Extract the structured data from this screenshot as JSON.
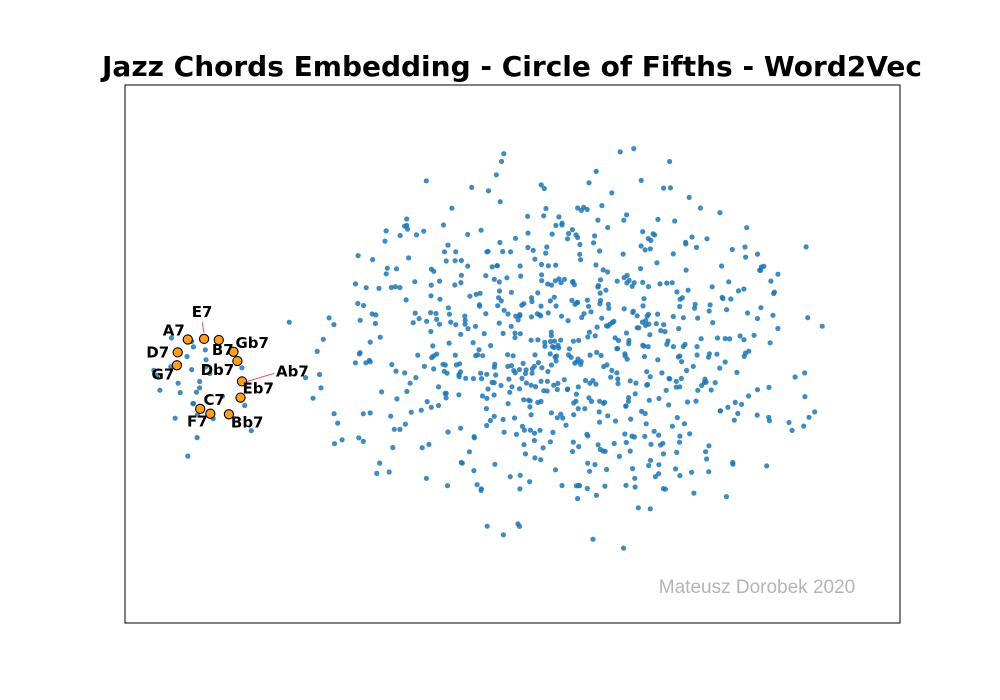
{
  "chart_data": {
    "type": "scatter",
    "title": "Jazz Chords Embedding - Circle of Fifths - Word2Vec",
    "xlabel": "",
    "ylabel": "",
    "xlim": [
      0,
      100
    ],
    "ylim": [
      0,
      100
    ],
    "ticks_visible": false,
    "grid": false,
    "legend": "none",
    "background_points": {
      "color": "#1f77b4",
      "count": 760,
      "cluster_centroid": [
        57,
        52
      ]
    },
    "highlighted": [
      {
        "label": "E7",
        "x": 10.2,
        "y": 52.8
      },
      {
        "label": "A7",
        "x": 8.1,
        "y": 52.7
      },
      {
        "label": "B7",
        "x": 12.1,
        "y": 52.6
      },
      {
        "label": "D7",
        "x": 6.8,
        "y": 50.3
      },
      {
        "label": "Gb7",
        "x": 14.0,
        "y": 50.4
      },
      {
        "label": "Db7",
        "x": 14.5,
        "y": 48.7
      },
      {
        "label": "G7",
        "x": 6.7,
        "y": 47.9
      },
      {
        "label": "Ab7",
        "x": 15.1,
        "y": 44.9
      },
      {
        "label": "Eb7",
        "x": 14.9,
        "y": 41.9
      },
      {
        "label": "C7",
        "x": 9.7,
        "y": 39.8
      },
      {
        "label": "F7",
        "x": 11.0,
        "y": 38.9
      },
      {
        "label": "Bb7",
        "x": 13.4,
        "y": 38.8
      }
    ],
    "highlight_color": "#ff9f1c",
    "arrow_color": "#e6443c",
    "watermark": "Mateusz Dorobek 2020",
    "watermark_color": "#b5b5b5"
  }
}
